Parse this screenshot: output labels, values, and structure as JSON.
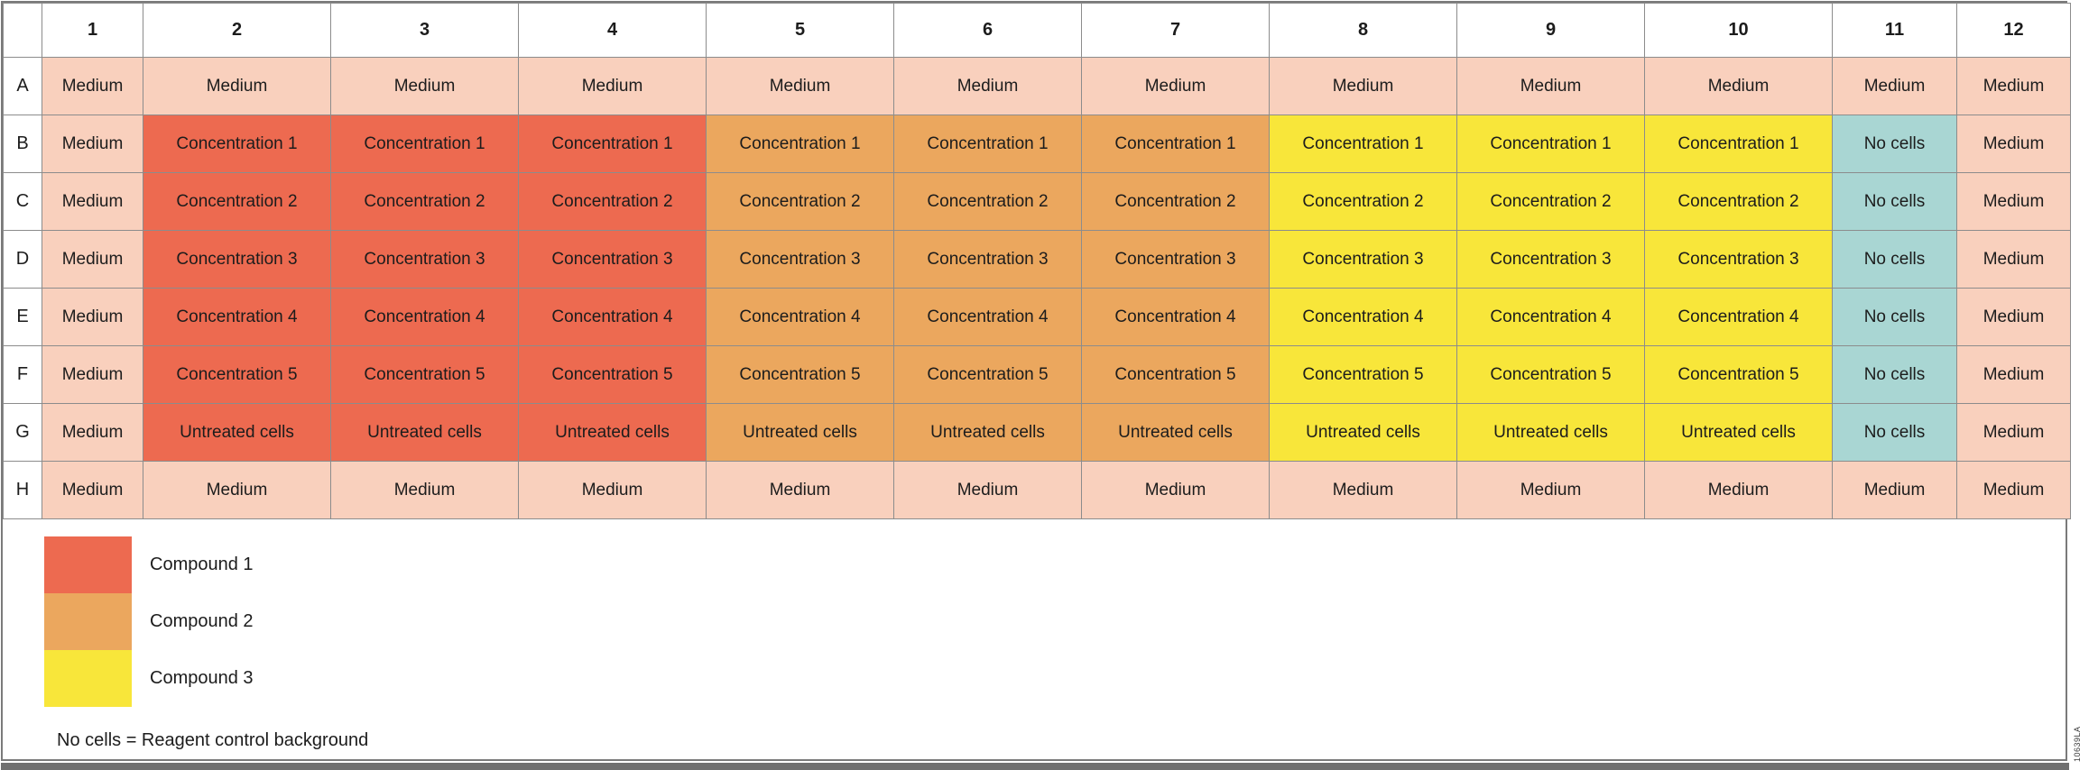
{
  "plate": {
    "column_headers": [
      "1",
      "2",
      "3",
      "4",
      "5",
      "6",
      "7",
      "8",
      "9",
      "10",
      "11",
      "12"
    ],
    "row_headers": [
      "A",
      "B",
      "C",
      "D",
      "E",
      "F",
      "G",
      "H"
    ],
    "rows": [
      {
        "row": "A",
        "cells": [
          {
            "label": "Medium",
            "type": "medium"
          },
          {
            "label": "Medium",
            "type": "medium"
          },
          {
            "label": "Medium",
            "type": "medium"
          },
          {
            "label": "Medium",
            "type": "medium"
          },
          {
            "label": "Medium",
            "type": "medium"
          },
          {
            "label": "Medium",
            "type": "medium"
          },
          {
            "label": "Medium",
            "type": "medium"
          },
          {
            "label": "Medium",
            "type": "medium"
          },
          {
            "label": "Medium",
            "type": "medium"
          },
          {
            "label": "Medium",
            "type": "medium"
          },
          {
            "label": "Medium",
            "type": "medium"
          },
          {
            "label": "Medium",
            "type": "medium"
          }
        ]
      },
      {
        "row": "B",
        "cells": [
          {
            "label": "Medium",
            "type": "medium"
          },
          {
            "label": "Concentration 1",
            "type": "compound1"
          },
          {
            "label": "Concentration 1",
            "type": "compound1"
          },
          {
            "label": "Concentration 1",
            "type": "compound1"
          },
          {
            "label": "Concentration 1",
            "type": "compound2"
          },
          {
            "label": "Concentration 1",
            "type": "compound2"
          },
          {
            "label": "Concentration 1",
            "type": "compound2"
          },
          {
            "label": "Concentration 1",
            "type": "compound3"
          },
          {
            "label": "Concentration 1",
            "type": "compound3"
          },
          {
            "label": "Concentration 1",
            "type": "compound3"
          },
          {
            "label": "No cells",
            "type": "no_cells"
          },
          {
            "label": "Medium",
            "type": "medium"
          }
        ]
      },
      {
        "row": "C",
        "cells": [
          {
            "label": "Medium",
            "type": "medium"
          },
          {
            "label": "Concentration 2",
            "type": "compound1"
          },
          {
            "label": "Concentration 2",
            "type": "compound1"
          },
          {
            "label": "Concentration 2",
            "type": "compound1"
          },
          {
            "label": "Concentration 2",
            "type": "compound2"
          },
          {
            "label": "Concentration 2",
            "type": "compound2"
          },
          {
            "label": "Concentration 2",
            "type": "compound2"
          },
          {
            "label": "Concentration 2",
            "type": "compound3"
          },
          {
            "label": "Concentration 2",
            "type": "compound3"
          },
          {
            "label": "Concentration 2",
            "type": "compound3"
          },
          {
            "label": "No cells",
            "type": "no_cells"
          },
          {
            "label": "Medium",
            "type": "medium"
          }
        ]
      },
      {
        "row": "D",
        "cells": [
          {
            "label": "Medium",
            "type": "medium"
          },
          {
            "label": "Concentration 3",
            "type": "compound1"
          },
          {
            "label": "Concentration 3",
            "type": "compound1"
          },
          {
            "label": "Concentration 3",
            "type": "compound1"
          },
          {
            "label": "Concentration 3",
            "type": "compound2"
          },
          {
            "label": "Concentration 3",
            "type": "compound2"
          },
          {
            "label": "Concentration 3",
            "type": "compound2"
          },
          {
            "label": "Concentration 3",
            "type": "compound3"
          },
          {
            "label": "Concentration 3",
            "type": "compound3"
          },
          {
            "label": "Concentration 3",
            "type": "compound3"
          },
          {
            "label": "No cells",
            "type": "no_cells"
          },
          {
            "label": "Medium",
            "type": "medium"
          }
        ]
      },
      {
        "row": "E",
        "cells": [
          {
            "label": "Medium",
            "type": "medium"
          },
          {
            "label": "Concentration 4",
            "type": "compound1"
          },
          {
            "label": "Concentration 4",
            "type": "compound1"
          },
          {
            "label": "Concentration 4",
            "type": "compound1"
          },
          {
            "label": "Concentration 4",
            "type": "compound2"
          },
          {
            "label": "Concentration 4",
            "type": "compound2"
          },
          {
            "label": "Concentration 4",
            "type": "compound2"
          },
          {
            "label": "Concentration 4",
            "type": "compound3"
          },
          {
            "label": "Concentration 4",
            "type": "compound3"
          },
          {
            "label": "Concentration 4",
            "type": "compound3"
          },
          {
            "label": "No cells",
            "type": "no_cells"
          },
          {
            "label": "Medium",
            "type": "medium"
          }
        ]
      },
      {
        "row": "F",
        "cells": [
          {
            "label": "Medium",
            "type": "medium"
          },
          {
            "label": "Concentration 5",
            "type": "compound1"
          },
          {
            "label": "Concentration 5",
            "type": "compound1"
          },
          {
            "label": "Concentration 5",
            "type": "compound1"
          },
          {
            "label": "Concentration 5",
            "type": "compound2"
          },
          {
            "label": "Concentration 5",
            "type": "compound2"
          },
          {
            "label": "Concentration 5",
            "type": "compound2"
          },
          {
            "label": "Concentration 5",
            "type": "compound3"
          },
          {
            "label": "Concentration 5",
            "type": "compound3"
          },
          {
            "label": "Concentration 5",
            "type": "compound3"
          },
          {
            "label": "No cells",
            "type": "no_cells"
          },
          {
            "label": "Medium",
            "type": "medium"
          }
        ]
      },
      {
        "row": "G",
        "cells": [
          {
            "label": "Medium",
            "type": "medium"
          },
          {
            "label": "Untreated cells",
            "type": "compound1"
          },
          {
            "label": "Untreated cells",
            "type": "compound1"
          },
          {
            "label": "Untreated cells",
            "type": "compound1"
          },
          {
            "label": "Untreated cells",
            "type": "compound2"
          },
          {
            "label": "Untreated cells",
            "type": "compound2"
          },
          {
            "label": "Untreated cells",
            "type": "compound2"
          },
          {
            "label": "Untreated cells",
            "type": "compound3"
          },
          {
            "label": "Untreated cells",
            "type": "compound3"
          },
          {
            "label": "Untreated cells",
            "type": "compound3"
          },
          {
            "label": "No cells",
            "type": "no_cells"
          },
          {
            "label": "Medium",
            "type": "medium"
          }
        ]
      },
      {
        "row": "H",
        "cells": [
          {
            "label": "Medium",
            "type": "medium"
          },
          {
            "label": "Medium",
            "type": "medium"
          },
          {
            "label": "Medium",
            "type": "medium"
          },
          {
            "label": "Medium",
            "type": "medium"
          },
          {
            "label": "Medium",
            "type": "medium"
          },
          {
            "label": "Medium",
            "type": "medium"
          },
          {
            "label": "Medium",
            "type": "medium"
          },
          {
            "label": "Medium",
            "type": "medium"
          },
          {
            "label": "Medium",
            "type": "medium"
          },
          {
            "label": "Medium",
            "type": "medium"
          },
          {
            "label": "Medium",
            "type": "medium"
          },
          {
            "label": "Medium",
            "type": "medium"
          }
        ]
      }
    ]
  },
  "colors": {
    "medium": "#f9d0bd",
    "compound1": "#ed6a50",
    "compound2": "#eba75e",
    "compound3": "#f8e63a",
    "no_cells": "#a9d6d3",
    "grid_border": "#8c8c8c",
    "outer_border": "#7a7a7a",
    "bottom_bar": "#707070",
    "header_bg": "#ffffff"
  },
  "legend": {
    "items": [
      {
        "label": "Compound 1",
        "type": "compound1"
      },
      {
        "label": "Compound 2",
        "type": "compound2"
      },
      {
        "label": "Compound 3",
        "type": "compound3"
      }
    ],
    "note": "No cells = Reagent control background"
  },
  "footer": {
    "side_label": "10639LA"
  }
}
